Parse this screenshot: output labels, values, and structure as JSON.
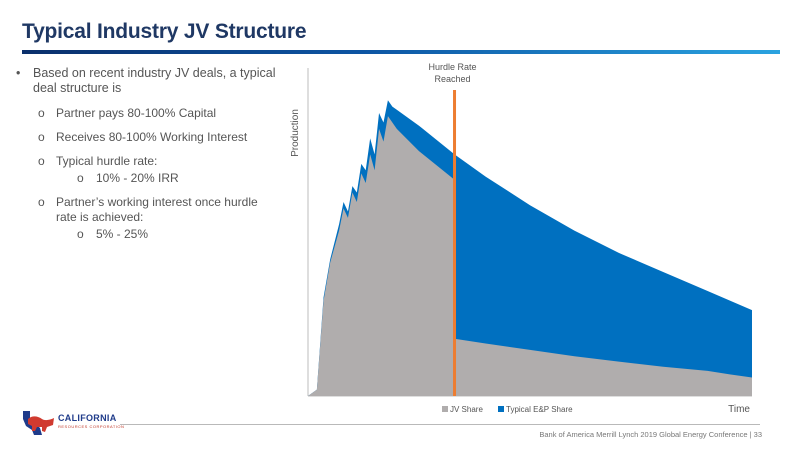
{
  "slide": {
    "title": "Typical Industry JV Structure",
    "footer": "Bank of America Merrill Lynch 2019 Global Energy Conference | 33"
  },
  "logo": {
    "name": "CALIFORNIA",
    "subtitle": "RESOURCES CORPORATION"
  },
  "bullets": {
    "main": "Based on recent industry JV deals, a typical deal structure is",
    "items": [
      {
        "text": "Partner pays 80-100% Capital"
      },
      {
        "text": "Receives 80-100% Working Interest"
      },
      {
        "text": "Typical hurdle rate:",
        "sub": "10% - 20% IRR"
      },
      {
        "text": "Partner’s working interest once hurdle rate is achieved:",
        "sub": "5% - 25%"
      }
    ]
  },
  "chart_data": {
    "type": "area",
    "ylabel": "Production",
    "xlabel": "Time",
    "annotation": "Hurdle Rate\nReached",
    "hurdle_x": 0.33,
    "x": [
      0,
      0.02,
      0.035,
      0.05,
      0.07,
      0.08,
      0.09,
      0.1,
      0.11,
      0.12,
      0.13,
      0.14,
      0.15,
      0.16,
      0.17,
      0.18,
      0.19,
      0.2,
      0.25,
      0.33,
      0.4,
      0.5,
      0.6,
      0.7,
      0.8,
      0.9,
      1.0
    ],
    "series": [
      {
        "name": "JV Share",
        "color": "#b0adad",
        "values": [
          0,
          0.02,
          0.3,
          0.42,
          0.52,
          0.59,
          0.56,
          0.64,
          0.61,
          0.7,
          0.67,
          0.76,
          0.71,
          0.84,
          0.8,
          0.88,
          0.86,
          0.84,
          0.77,
          0.68,
          0.62,
          0.54,
          0.47,
          0.41,
          0.36,
          0.31,
          0.27
        ]
      },
      {
        "name": "Typical E&P Share",
        "color": "#0070c0",
        "values": [
          0,
          0.02,
          0.31,
          0.43,
          0.54,
          0.61,
          0.58,
          0.66,
          0.64,
          0.73,
          0.71,
          0.81,
          0.76,
          0.89,
          0.86,
          0.93,
          0.91,
          0.9,
          0.85,
          0.76,
          0.69,
          0.6,
          0.52,
          0.45,
          0.39,
          0.33,
          0.27
        ]
      }
    ],
    "jv_share_after_hurdle": [
      0.18,
      0.165,
      0.145,
      0.125,
      0.108,
      0.092,
      0.079,
      0.068,
      0.058
    ],
    "jv_after_x": [
      0.33,
      0.4,
      0.5,
      0.6,
      0.7,
      0.8,
      0.9,
      0.95,
      1.0
    ],
    "ylim": [
      0,
      1.0
    ],
    "legend_position": "bottom"
  }
}
